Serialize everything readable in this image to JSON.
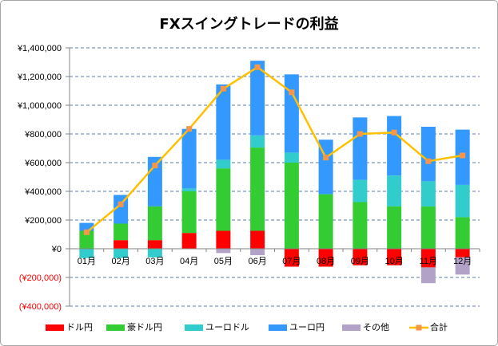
{
  "chart_data": {
    "type": "bar",
    "stacked": true,
    "title": "FXスイングトレードの利益",
    "categories": [
      "01月",
      "02月",
      "03月",
      "04月",
      "05月",
      "06月",
      "07月",
      "08月",
      "09月",
      "10月",
      "11月",
      "12月"
    ],
    "series": [
      {
        "name": "ドル円",
        "color": "#FF0000",
        "values": [
          0,
          60000,
          60000,
          110000,
          125000,
          125000,
          -125000,
          -125000,
          -115000,
          -115000,
          -130000,
          -60000
        ]
      },
      {
        "name": "豪ドル円",
        "color": "#33CC33",
        "values": [
          125000,
          115000,
          235000,
          290000,
          435000,
          580000,
          600000,
          380000,
          325000,
          295000,
          295000,
          220000
        ]
      },
      {
        "name": "ユーロドル",
        "color": "#33CCCC",
        "values": [
          -65000,
          -65000,
          -60000,
          20000,
          60000,
          85000,
          70000,
          0,
          155000,
          215000,
          175000,
          225000
        ]
      },
      {
        "name": "ユーロ円",
        "color": "#3399FF",
        "values": [
          55000,
          200000,
          345000,
          415000,
          525000,
          520000,
          545000,
          380000,
          435000,
          415000,
          380000,
          385000
        ]
      },
      {
        "name": "その他",
        "color": "#B3A2C7",
        "values": [
          0,
          0,
          0,
          0,
          -30000,
          -45000,
          0,
          0,
          0,
          0,
          -110000,
          -120000
        ]
      }
    ],
    "line_series": {
      "name": "合計",
      "type": "line",
      "color": "#FFC000",
      "marker_color": "#F79646",
      "values": [
        115000,
        310000,
        580000,
        835000,
        1115000,
        1265000,
        1090000,
        635000,
        800000,
        810000,
        610000,
        650000
      ]
    },
    "ylim": [
      -400000,
      1400000
    ],
    "y_tick_step": 200000,
    "y_tick_labels": [
      "¥1,400,000",
      "¥1,200,000",
      "¥1,000,000",
      "¥800,000",
      "¥600,000",
      "¥400,000",
      "¥200,000",
      "¥0",
      "(¥200,000)",
      "(¥400,000)"
    ],
    "negative_tick_label_color": "#FF0000",
    "grid": true,
    "grid_color": "#5A7DAE",
    "axis_color": "#868686",
    "legend_position": "bottom"
  }
}
